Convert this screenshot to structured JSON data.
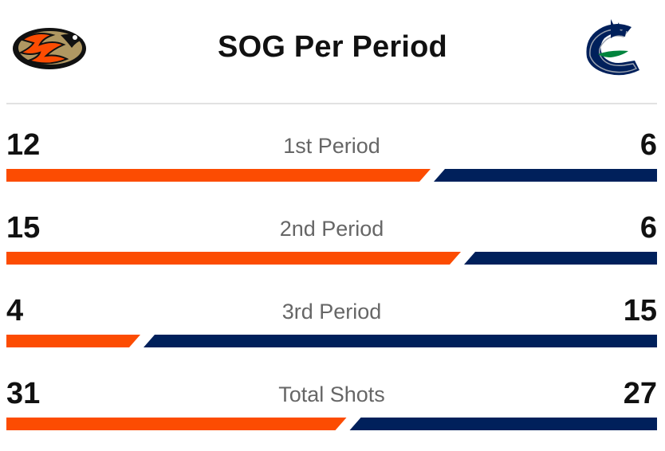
{
  "title": "SOG Per Period",
  "colors": {
    "home": "#fc4c02",
    "away": "#00205b",
    "divider": "#e2e2e2"
  },
  "logos": {
    "home": "ducks-logo-icon",
    "away": "canucks-logo-icon"
  },
  "rows": [
    {
      "label": "1st Period",
      "home": "12",
      "away": "6"
    },
    {
      "label": "2nd Period",
      "home": "15",
      "away": "6"
    },
    {
      "label": "3rd Period",
      "home": "4",
      "away": "15"
    },
    {
      "label": "Total Shots",
      "home": "31",
      "away": "27"
    }
  ]
}
